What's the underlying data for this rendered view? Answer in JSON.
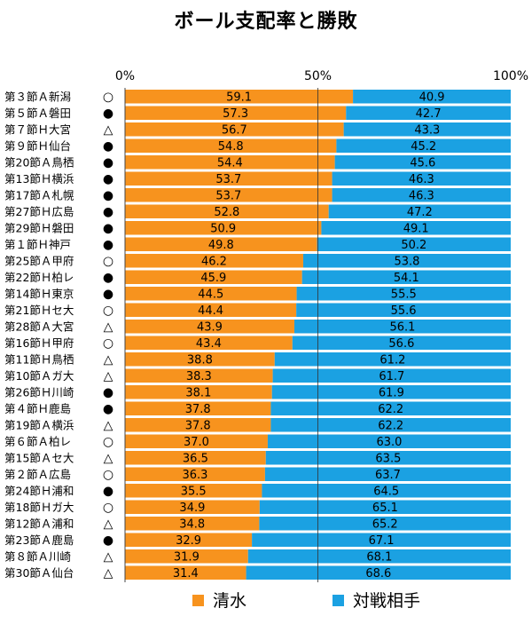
{
  "chart_data": {
    "type": "bar",
    "stacked": true,
    "orientation": "horizontal",
    "title": "ボール支配率と勝敗",
    "xlim": [
      0,
      100
    ],
    "x_ticks": [
      "0%",
      "50%",
      "100%"
    ],
    "grid": true,
    "legend_position": "bottom",
    "categories": [
      "第３節Ａ新潟",
      "第５節Ａ磐田",
      "第７節Ｈ大宮",
      "第９節Ｈ仙台",
      "第20節Ａ鳥栖",
      "第13節Ｈ横浜",
      "第17節Ａ札幌",
      "第27節Ｈ広島",
      "第29節Ｈ磐田",
      "第１節Ｈ神戸",
      "第25節Ａ甲府",
      "第22節Ｈ柏レ",
      "第14節Ｈ東京",
      "第21節Ｈセ大",
      "第28節Ａ大宮",
      "第16節Ｈ甲府",
      "第11節Ｈ鳥栖",
      "第10節Ａガ大",
      "第26節Ｈ川崎",
      "第４節Ｈ鹿島",
      "第19節Ａ横浜",
      "第６節Ａ柏レ",
      "第15節Ａセ大",
      "第２節Ａ広島",
      "第24節Ｈ浦和",
      "第18節Ｈガ大",
      "第12節Ａ浦和",
      "第23節Ａ鹿島",
      "第８節Ａ川崎",
      "第30節Ａ仙台"
    ],
    "results": [
      "○",
      "●",
      "△",
      "●",
      "●",
      "●",
      "●",
      "●",
      "●",
      "●",
      "○",
      "●",
      "●",
      "○",
      "△",
      "○",
      "△",
      "△",
      "●",
      "●",
      "△",
      "○",
      "△",
      "○",
      "●",
      "○",
      "△",
      "●",
      "△",
      "△"
    ],
    "series": [
      {
        "name": "清水",
        "color": "#f7931e",
        "values": [
          "59.1",
          "57.3",
          "56.7",
          "54.8",
          "54.4",
          "53.7",
          "53.7",
          "52.8",
          "50.9",
          "49.8",
          "46.2",
          "45.9",
          "44.5",
          "44.4",
          "43.9",
          "43.4",
          "38.8",
          "38.3",
          "38.1",
          "37.8",
          "37.8",
          "37.0",
          "36.5",
          "36.3",
          "35.5",
          "34.9",
          "34.8",
          "32.9",
          "31.9",
          "31.4"
        ]
      },
      {
        "name": "対戦相手",
        "color": "#1ba1e2",
        "values": [
          "40.9",
          "42.7",
          "43.3",
          "45.2",
          "45.6",
          "46.3",
          "46.3",
          "47.2",
          "49.1",
          "50.2",
          "53.8",
          "54.1",
          "55.5",
          "55.6",
          "56.1",
          "56.6",
          "61.2",
          "61.7",
          "61.9",
          "62.2",
          "62.2",
          "63.0",
          "63.5",
          "63.7",
          "64.5",
          "65.1",
          "65.2",
          "67.1",
          "68.1",
          "68.6"
        ]
      }
    ]
  }
}
